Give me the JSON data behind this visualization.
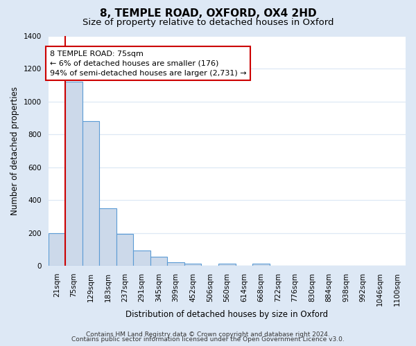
{
  "title": "8, TEMPLE ROAD, OXFORD, OX4 2HD",
  "subtitle": "Size of property relative to detached houses in Oxford",
  "xlabel": "Distribution of detached houses by size in Oxford",
  "ylabel": "Number of detached properties",
  "bar_labels": [
    "21sqm",
    "75sqm",
    "129sqm",
    "183sqm",
    "237sqm",
    "291sqm",
    "345sqm",
    "399sqm",
    "452sqm",
    "506sqm",
    "560sqm",
    "614sqm",
    "668sqm",
    "722sqm",
    "776sqm",
    "830sqm",
    "884sqm",
    "938sqm",
    "992sqm",
    "1046sqm",
    "1100sqm"
  ],
  "bar_heights": [
    200,
    1120,
    880,
    350,
    195,
    95,
    55,
    22,
    15,
    0,
    12,
    0,
    12,
    0,
    0,
    0,
    0,
    0,
    0,
    0,
    0
  ],
  "bar_color": "#ccd9ea",
  "bar_edge_color": "#5b9bd5",
  "highlight_bar_index": 1,
  "highlight_line_color": "#cc0000",
  "annotation_text": "8 TEMPLE ROAD: 75sqm\n← 6% of detached houses are smaller (176)\n94% of semi-detached houses are larger (2,731) →",
  "annotation_box_color": "#ffffff",
  "annotation_box_edge_color": "#cc0000",
  "ylim": [
    0,
    1400
  ],
  "yticks": [
    0,
    200,
    400,
    600,
    800,
    1000,
    1200,
    1400
  ],
  "footer_line1": "Contains HM Land Registry data © Crown copyright and database right 2024.",
  "footer_line2": "Contains public sector information licensed under the Open Government Licence v3.0.",
  "bg_color": "#dde8f5",
  "plot_bg_color": "#ffffff",
  "grid_color": "#dde8f5",
  "title_fontsize": 11,
  "subtitle_fontsize": 9.5,
  "label_fontsize": 8.5,
  "tick_fontsize": 7.5,
  "annotation_fontsize": 8.0,
  "footer_fontsize": 6.5
}
